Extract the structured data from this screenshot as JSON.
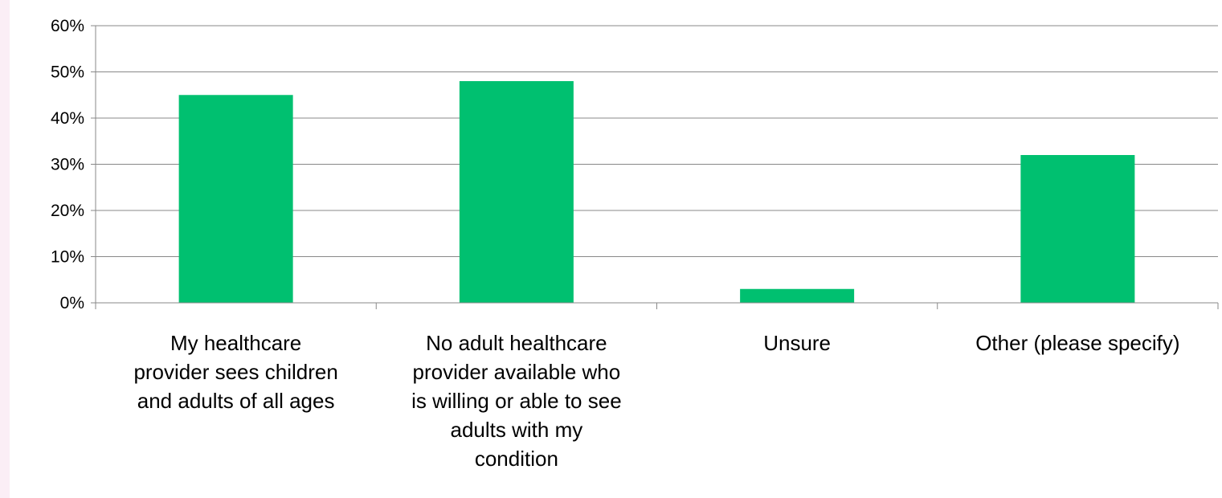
{
  "chart_data": {
    "type": "bar",
    "title": "",
    "xlabel": "",
    "ylabel": "",
    "categories": [
      "My healthcare provider sees children and adults of all ages",
      "No adult healthcare provider available who is willing or able to see adults with my condition",
      "Unsure",
      "Other (please specify)"
    ],
    "category_lines": [
      [
        "My healthcare",
        "provider sees children",
        "and adults of all ages"
      ],
      [
        "No adult healthcare",
        "provider available who",
        "is willing or able to see",
        "adults with my",
        "condition"
      ],
      [
        "Unsure"
      ],
      [
        "Other (please specify)"
      ]
    ],
    "values": [
      0.45,
      0.48,
      0.03,
      0.32
    ],
    "ylim": [
      0,
      0.6
    ],
    "yticks": [
      0,
      0.1,
      0.2,
      0.3,
      0.4,
      0.5,
      0.6
    ],
    "ytick_labels": [
      "0%",
      "10%",
      "20%",
      "30%",
      "40%",
      "50%",
      "60%"
    ],
    "grid": true,
    "legend": "none",
    "colors": {
      "bar": "#00c070",
      "gridline": "#888888",
      "axis": "#888888",
      "background": "#ffffff",
      "left_strip": "#fbeef6"
    }
  }
}
